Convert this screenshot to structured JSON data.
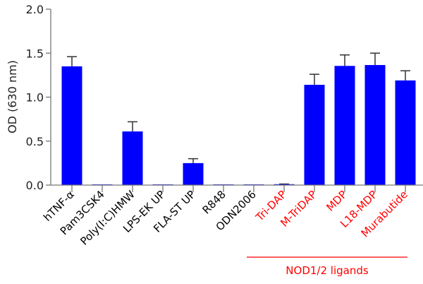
{
  "chart_data": {
    "type": "bar",
    "ylabel": "OD (630 nm)",
    "ylim": [
      0,
      2.0
    ],
    "yticks": [
      "0.0",
      "0.5",
      "1.0",
      "1.5",
      "2.0"
    ],
    "grid": false,
    "categories": [
      "hTNF-α",
      "Pam3CSK4",
      "Poly(I:C)HMW",
      "LPS-EK UP",
      "FLA-ST UP",
      "R848",
      "ODN2006",
      "Tri-DAP",
      "M-TriDAP",
      "MDP",
      "L18-MDP",
      "Murabutide"
    ],
    "category_colors": [
      "#000000",
      "#000000",
      "#000000",
      "#000000",
      "#000000",
      "#000000",
      "#000000",
      "#ff0000",
      "#ff0000",
      "#ff0000",
      "#ff0000",
      "#ff0000"
    ],
    "values": [
      1.35,
      0.003,
      0.61,
      0.005,
      0.25,
      0.005,
      0.0,
      0.01,
      1.14,
      1.355,
      1.365,
      1.19
    ],
    "error_upper": [
      1.46,
      0.003,
      0.72,
      0.005,
      0.3,
      0.005,
      0.0,
      0.012,
      1.26,
      1.48,
      1.5,
      1.3
    ],
    "bar_color": "#0000ff",
    "group_annotation": {
      "label": "NOD1/2 ligands",
      "color": "#ff0000",
      "from": "Tri-DAP",
      "to": "Murabutide"
    }
  }
}
